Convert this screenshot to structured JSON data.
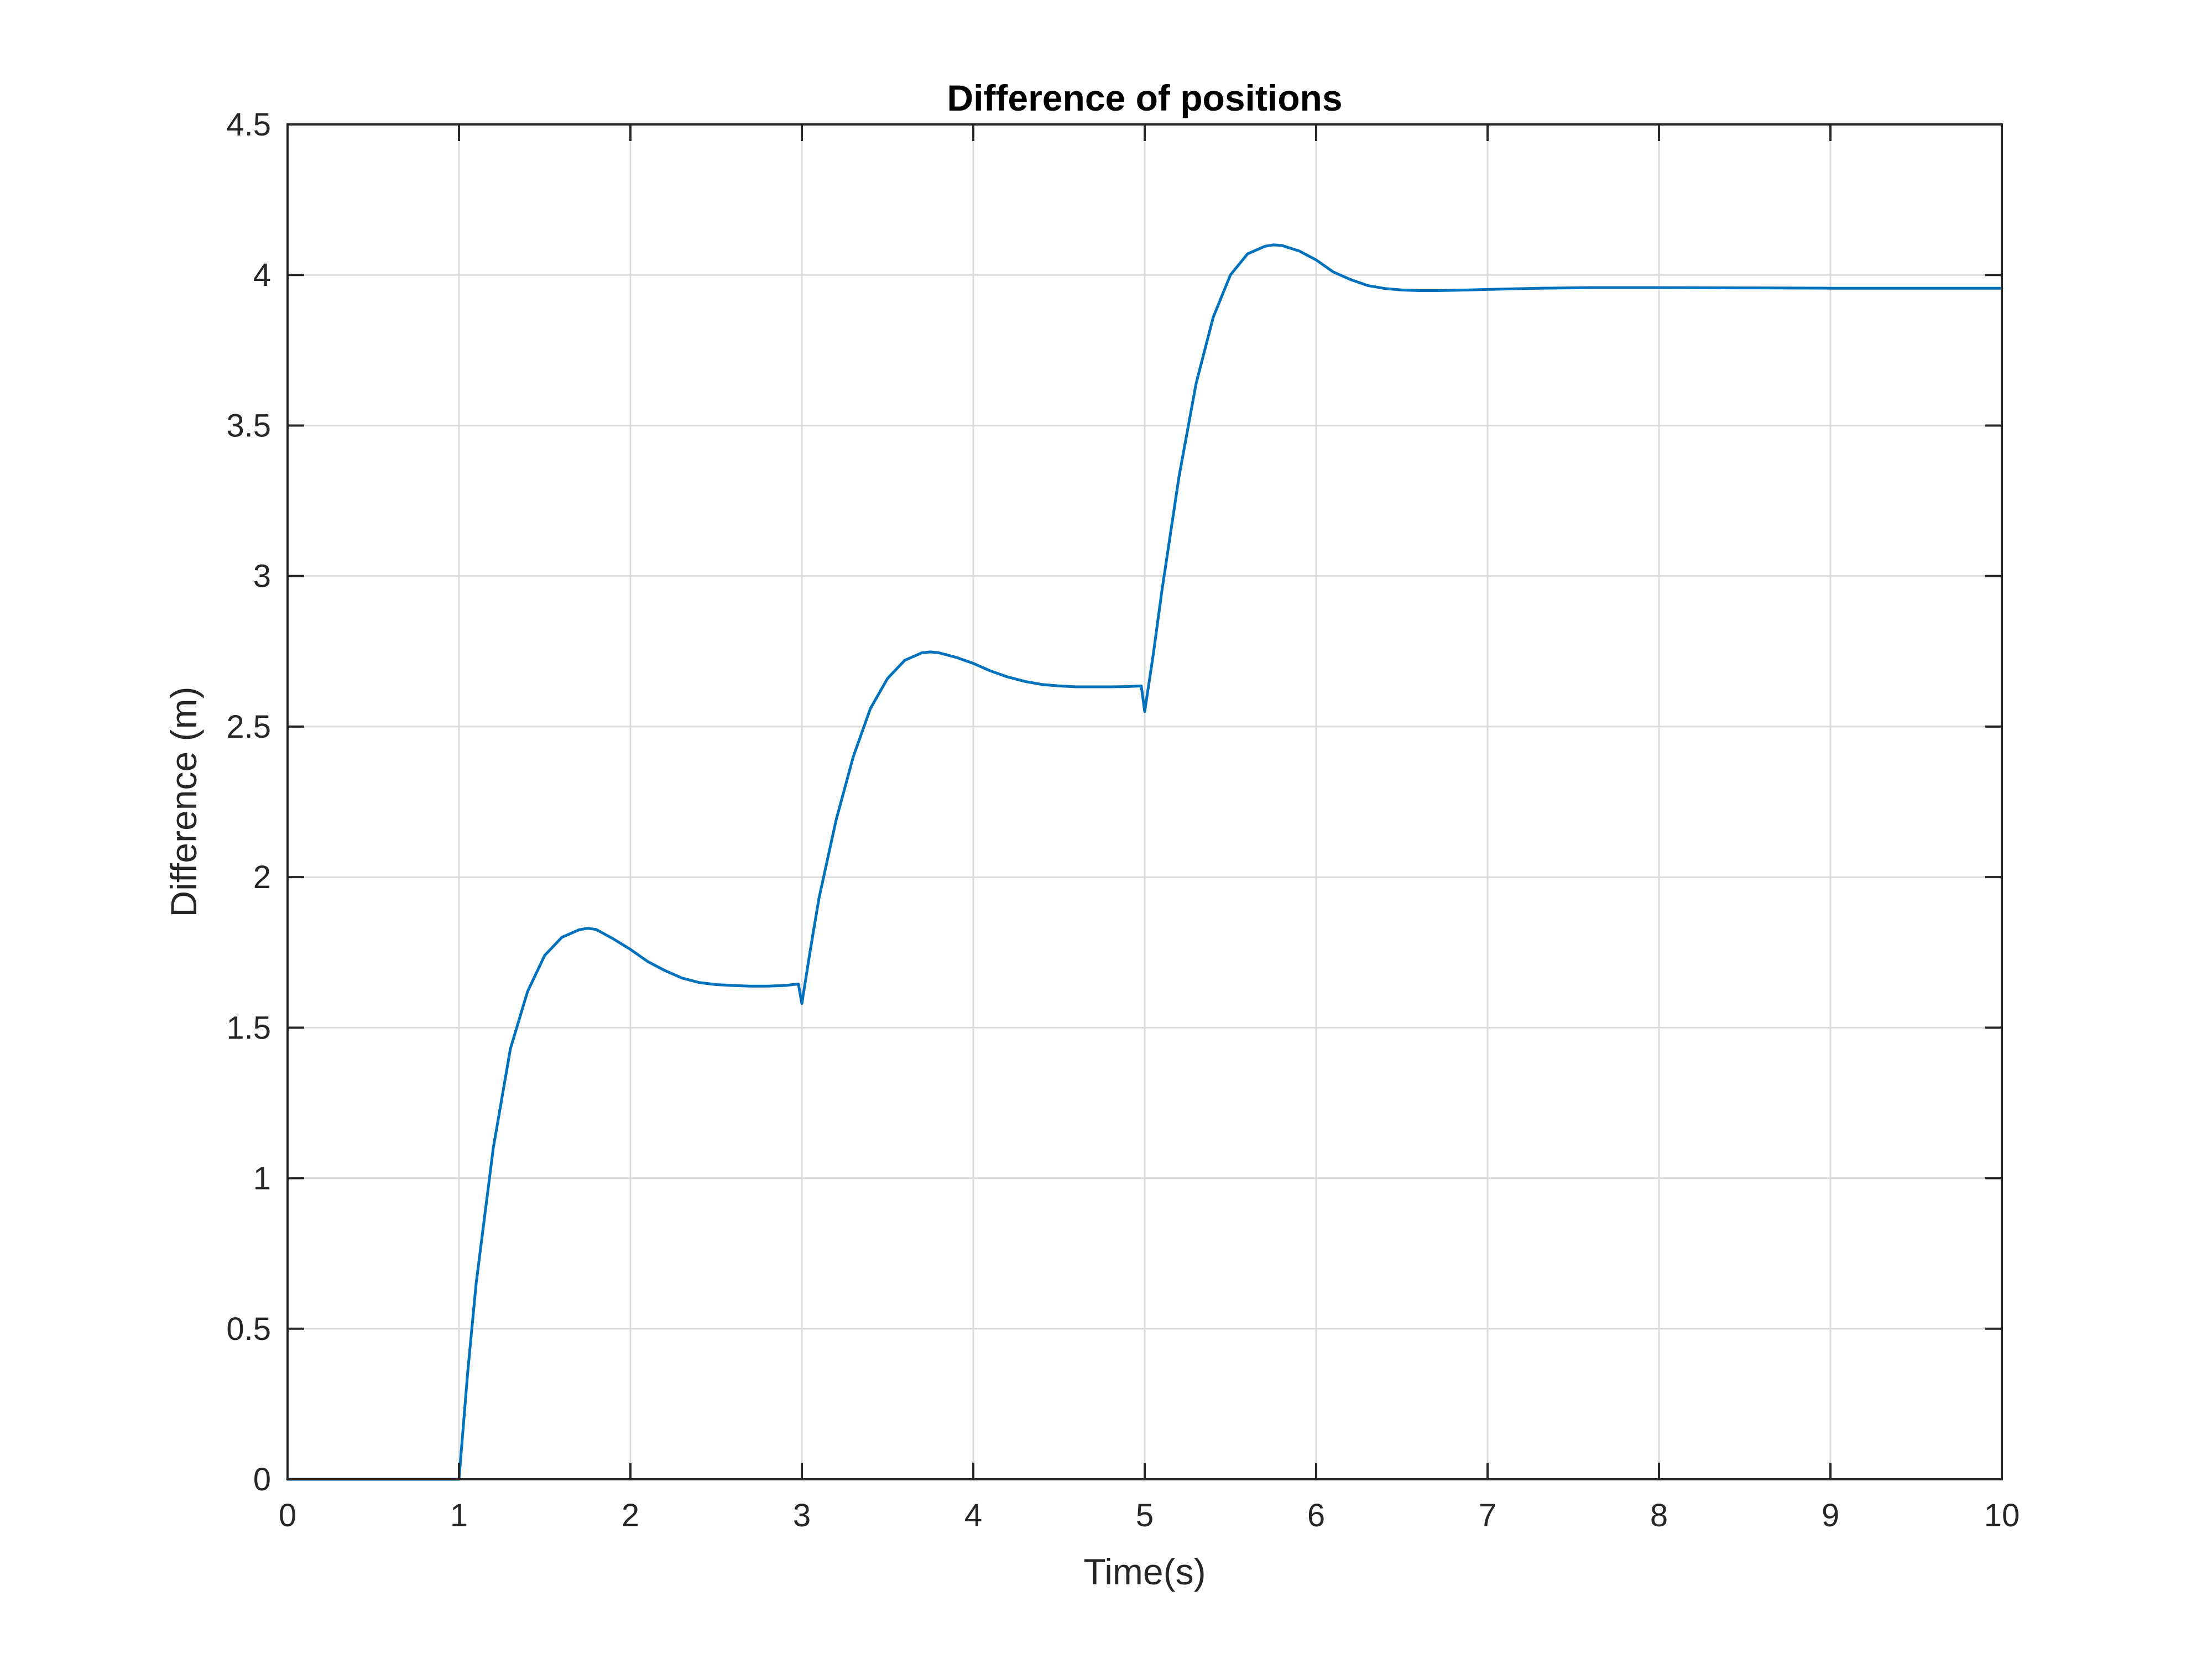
{
  "chart_data": {
    "type": "line",
    "title": "Difference of positions",
    "xlabel": "Time(s)",
    "ylabel": "Difference (m)",
    "xlim": [
      0,
      10
    ],
    "ylim": [
      0,
      4.5
    ],
    "xticks": [
      "0",
      "1",
      "2",
      "3",
      "4",
      "5",
      "6",
      "7",
      "8",
      "9",
      "10"
    ],
    "yticks": [
      "0",
      "0.5",
      "1",
      "1.5",
      "2",
      "2.5",
      "3",
      "3.5",
      "4",
      "4.5"
    ],
    "grid": true,
    "line_color": "#0072BD",
    "series": [
      {
        "x": [
          0,
          1.0,
          1.05,
          1.1,
          1.2,
          1.3,
          1.4,
          1.5,
          1.6,
          1.7,
          1.75,
          1.8,
          1.9,
          2.0,
          2.1,
          2.2,
          2.3,
          2.4,
          2.5,
          2.6,
          2.7,
          2.8,
          2.9,
          2.98,
          3.0,
          3.05,
          3.1,
          3.2,
          3.3,
          3.4,
          3.5,
          3.6,
          3.7,
          3.75,
          3.8,
          3.9,
          4.0,
          4.1,
          4.2,
          4.3,
          4.4,
          4.5,
          4.6,
          4.7,
          4.8,
          4.9,
          4.98,
          5.0,
          5.05,
          5.1,
          5.2,
          5.3,
          5.4,
          5.5,
          5.6,
          5.7,
          5.75,
          5.8,
          5.9,
          6.0,
          6.1,
          6.2,
          6.3,
          6.4,
          6.5,
          6.6,
          6.7,
          6.8,
          7.0,
          7.3,
          7.6,
          8.0,
          8.5,
          9.0,
          9.5,
          10.0
        ],
        "y": [
          0,
          0,
          0.35,
          0.65,
          1.1,
          1.43,
          1.62,
          1.74,
          1.8,
          1.825,
          1.83,
          1.826,
          1.795,
          1.76,
          1.72,
          1.69,
          1.665,
          1.65,
          1.643,
          1.64,
          1.638,
          1.638,
          1.64,
          1.645,
          1.58,
          1.76,
          1.93,
          2.19,
          2.4,
          2.56,
          2.66,
          2.72,
          2.745,
          2.748,
          2.745,
          2.73,
          2.71,
          2.685,
          2.665,
          2.65,
          2.64,
          2.635,
          2.632,
          2.632,
          2.632,
          2.633,
          2.635,
          2.55,
          2.74,
          2.95,
          3.33,
          3.64,
          3.86,
          4.0,
          4.07,
          4.095,
          4.1,
          4.098,
          4.08,
          4.05,
          4.01,
          3.985,
          3.965,
          3.955,
          3.95,
          3.948,
          3.948,
          3.949,
          3.952,
          3.956,
          3.958,
          3.958,
          3.957,
          3.956,
          3.956,
          3.956
        ]
      }
    ]
  }
}
